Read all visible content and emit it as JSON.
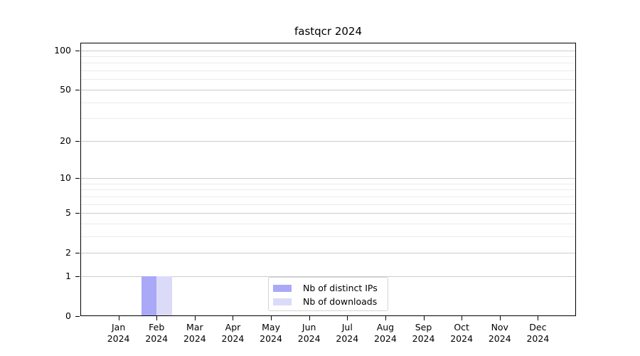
{
  "chart_data": {
    "type": "bar",
    "title": "fastqcr 2024",
    "categories": [
      "Jan 2024",
      "Feb 2024",
      "Mar 2024",
      "Apr 2024",
      "May 2024",
      "Jun 2024",
      "Jul 2024",
      "Aug 2024",
      "Sep 2024",
      "Oct 2024",
      "Nov 2024",
      "Dec 2024"
    ],
    "series": [
      {
        "name": "Nb of distinct IPs",
        "color": "#a9a9f7",
        "values": [
          0,
          1,
          0,
          0,
          0,
          0,
          0,
          0,
          0,
          0,
          0,
          0
        ]
      },
      {
        "name": "Nb of downloads",
        "color": "#dbdbf9",
        "values": [
          0,
          1,
          0,
          0,
          0,
          0,
          0,
          0,
          0,
          0,
          0,
          0
        ]
      }
    ],
    "xlabel": "",
    "ylabel": "",
    "y_axis": {
      "scale": "log1p",
      "major_ticks": [
        0,
        1,
        2,
        5,
        10,
        20,
        50,
        100
      ],
      "minor_gridlines": [
        3,
        4,
        6,
        7,
        8,
        9,
        30,
        40,
        60,
        70,
        80,
        90
      ],
      "ylim": [
        0,
        113
      ]
    },
    "grid": true,
    "legend_position": "bottom-center-inside"
  },
  "colors": {
    "grid_major": "#cccccc",
    "grid_minor": "#ebebeb",
    "axis": "#000000",
    "legend_border": "#d4d4d4",
    "background": "#ffffff"
  }
}
